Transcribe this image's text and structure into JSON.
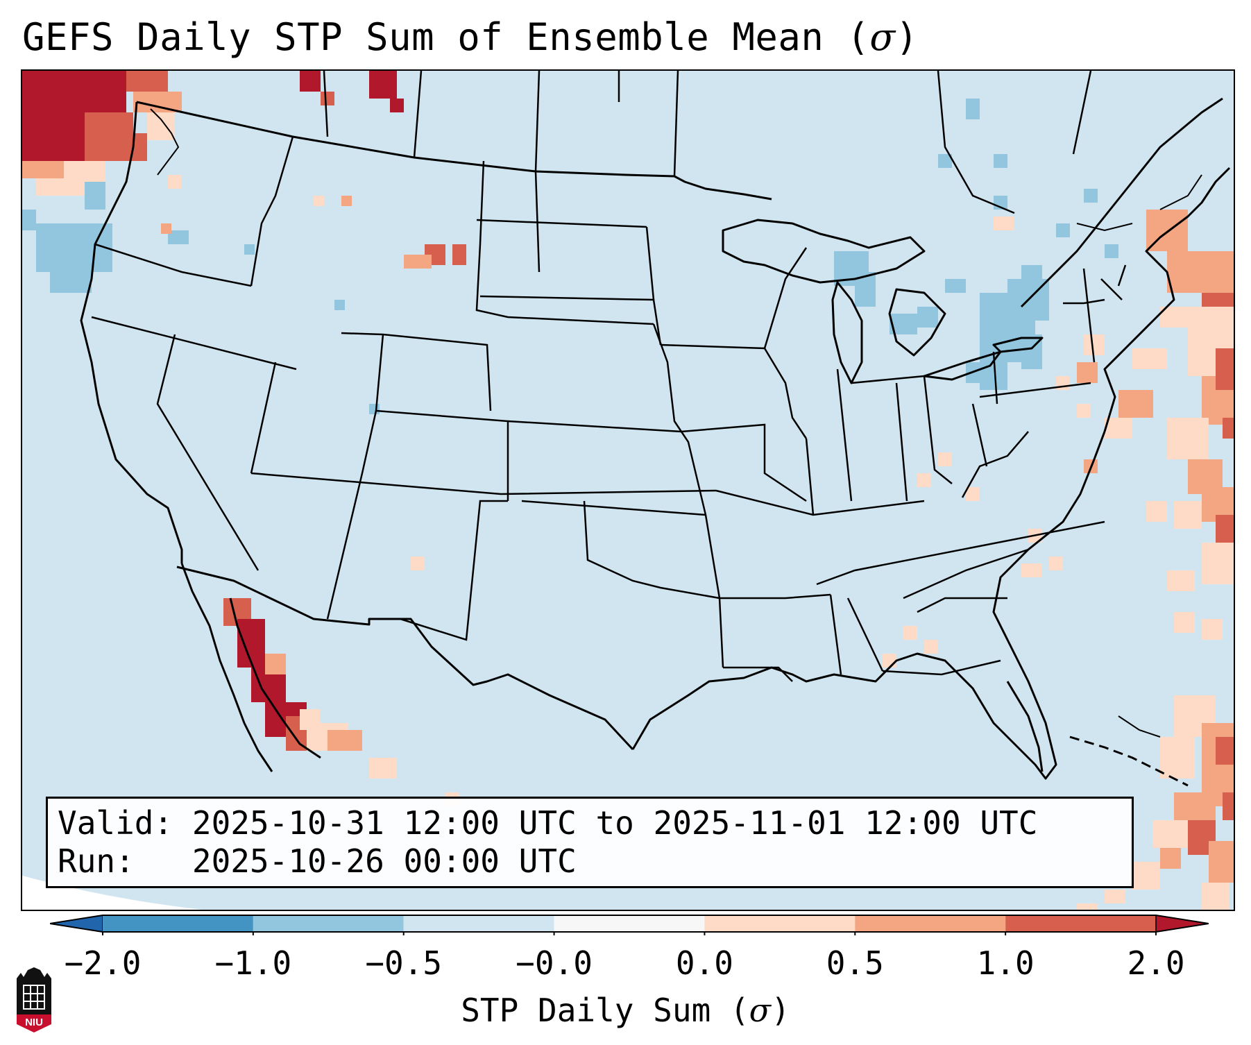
{
  "title": {
    "text": "GEFS Daily STP Sum of Ensemble Mean (",
    "symbol": "σ",
    "close": ")"
  },
  "info": {
    "valid_label": "Valid:",
    "valid_value": "2025-10-31 12:00 UTC to 2025-11-01 12:00 UTC",
    "run_label": "Run:",
    "run_value": "2025-10-26 00:00 UTC"
  },
  "colorbar": {
    "label": "STP Daily Sum (",
    "symbol": "σ",
    "close": ")",
    "ticks": [
      "−2.0",
      "−1.0",
      "−0.5",
      "−0.0",
      "0.0",
      "0.5",
      "1.0",
      "2.0"
    ],
    "colors": [
      "#4393c3",
      "#92c5de",
      "#d1e5f0",
      "#f7f7f7",
      "#fddbc7",
      "#f4a582",
      "#d6604d"
    ],
    "under_color": "#2166ac",
    "over_color": "#b2182b",
    "extend": "both"
  },
  "map": {
    "projection": "Lambert Conformal",
    "background_color": "#d1e5f0",
    "regions": [
      {
        "name": "Pacific Northwest coast",
        "level": "over"
      },
      {
        "name": "Baja California / Gulf of California",
        "level": "over"
      },
      {
        "name": "Western Atlantic off New England",
        "level": "0.5 to 1.0"
      },
      {
        "name": "Western Atlantic near Bahamas",
        "level": "0.5 to 1.0"
      },
      {
        "name": "Great Lakes",
        "level": "−1.0 to −0.5"
      },
      {
        "name": "Pennsylvania / New York",
        "level": "−1.0 to −0.5"
      },
      {
        "name": "Pacific off Oregon",
        "level": "−1.0 to −0.5"
      },
      {
        "name": "Montana / Dakotas border",
        "level": "0.5 to 1.0"
      }
    ]
  },
  "logo": {
    "text": "NIU"
  }
}
